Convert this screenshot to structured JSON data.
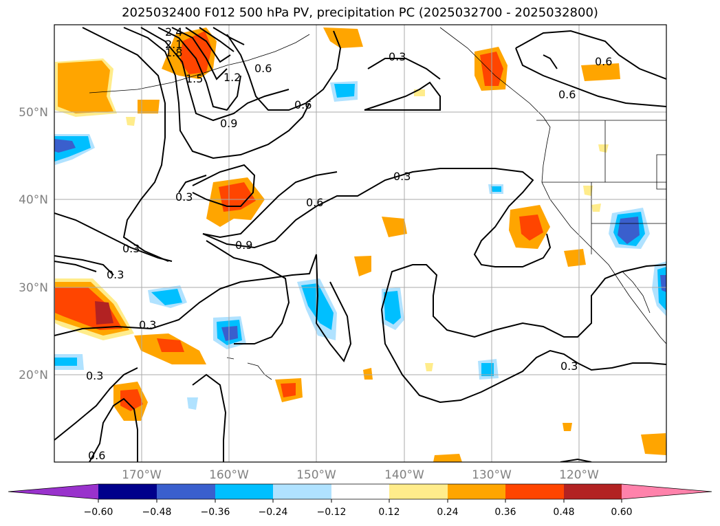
{
  "title": "2025032400 F012 500 hPa PV, precipitation PC (2025032700 - 2025032800)",
  "map": {
    "lon_range": [
      -180,
      -110
    ],
    "lat_range": [
      10,
      60
    ],
    "lat_labels": [
      "20°N",
      "30°N",
      "40°N",
      "50°N"
    ],
    "lon_labels": [
      "170°W",
      "160°W",
      "150°W",
      "140°W",
      "130°W",
      "120°W"
    ],
    "contour_labels": [
      "2.4",
      "2.1",
      "1.8",
      "1.5",
      "1.2",
      "0.9",
      "0.6",
      "0.6",
      "0.6",
      "0.3",
      "0.6",
      "0.3",
      "0.6",
      "0.3",
      "0.3",
      "0.3",
      "0.9",
      "0.3",
      "0.3",
      "0.3",
      "0.6"
    ]
  },
  "colorbar": {
    "ticks": [
      "−0.60",
      "−0.48",
      "−0.36",
      "−0.24",
      "−0.12",
      "0.12",
      "0.24",
      "0.36",
      "0.48",
      "0.60"
    ],
    "colors": {
      "under": "#9932cc",
      "c1": "#00008b",
      "c2": "#3a5fcd",
      "c3": "#00bfff",
      "c4": "#b0e2ff",
      "c5": "#ffffff",
      "c6": "#ffec8b",
      "c7": "#ffa500",
      "c8": "#ff4500",
      "c9": "#b22222",
      "over": "#ff82ab"
    }
  }
}
